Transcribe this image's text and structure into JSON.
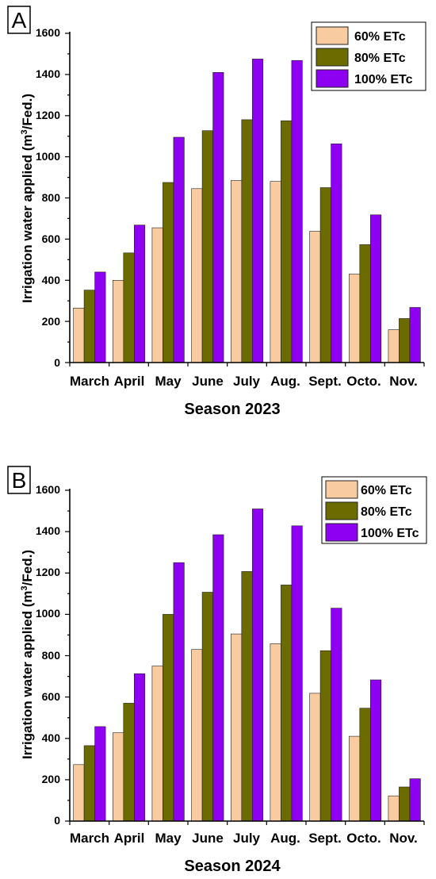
{
  "colors": {
    "series_60": "#f8cba1",
    "series_80": "#6b6b00",
    "series_100": "#8d00f2",
    "bar_stroke": "#222222"
  },
  "chart_data": [
    {
      "panel_label": "A",
      "type": "bar",
      "categories": [
        "March",
        "April",
        "May",
        "June",
        "July",
        "Aug.",
        "Sept.",
        "Octo.",
        "Nov."
      ],
      "series": [
        {
          "name": "60% ETc",
          "values": [
            265,
            400,
            655,
            845,
            885,
            880,
            638,
            430,
            160
          ]
        },
        {
          "name": "80% ETc",
          "values": [
            352,
            533,
            875,
            1127,
            1180,
            1175,
            850,
            573,
            214
          ]
        },
        {
          "name": "100% ETc",
          "values": [
            440,
            668,
            1095,
            1410,
            1475,
            1468,
            1063,
            718,
            268
          ]
        }
      ],
      "xlabel": "Season 2023",
      "ylabel_main": "Irrigation water applied (m",
      "ylabel_sup": "3",
      "ylabel_end": "/Fed.)",
      "ylim": [
        0,
        1600
      ],
      "yticks": [
        "0",
        "200",
        "400",
        "600",
        "800",
        "1000",
        "1200",
        "1400",
        "1600"
      ],
      "legend_position": "top-right",
      "grid": false
    },
    {
      "panel_label": "B",
      "type": "bar",
      "categories": [
        "March",
        "April",
        "May",
        "June",
        "July",
        "Aug.",
        "Sept.",
        "Octo.",
        "Nov."
      ],
      "series": [
        {
          "name": "60% ETc",
          "values": [
            273,
            427,
            750,
            830,
            905,
            858,
            618,
            410,
            122
          ]
        },
        {
          "name": "80% ETc",
          "values": [
            365,
            570,
            1000,
            1107,
            1207,
            1142,
            824,
            546,
            165
          ]
        },
        {
          "name": "100% ETc",
          "values": [
            457,
            713,
            1250,
            1385,
            1510,
            1428,
            1030,
            683,
            205
          ]
        }
      ],
      "xlabel": "Season 2024",
      "ylabel_main": "Irrigation water applied (m",
      "ylabel_sup": "3",
      "ylabel_end": "/Fed.)",
      "ylim": [
        0,
        1600
      ],
      "yticks": [
        "0",
        "200",
        "400",
        "600",
        "800",
        "1000",
        "1200",
        "1400",
        "1600"
      ],
      "legend_position": "top-right",
      "grid": false
    }
  ]
}
